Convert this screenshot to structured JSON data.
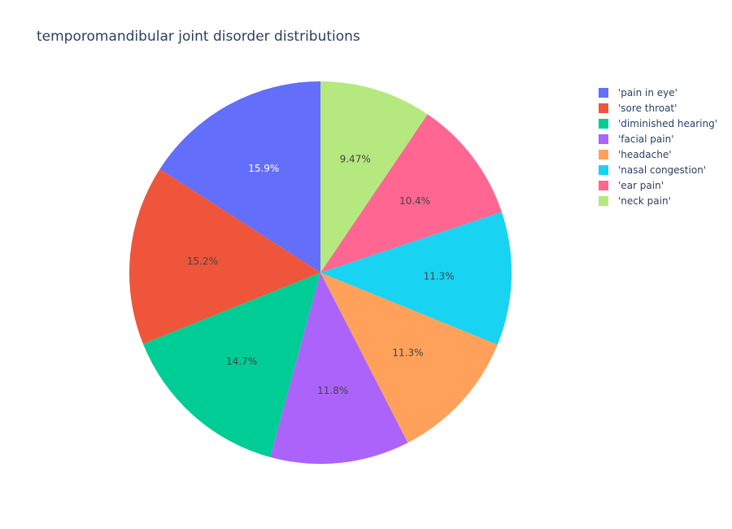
{
  "chart_data": {
    "type": "pie",
    "title": "temporomandibular joint disorder distributions",
    "labels": [
      "'pain in eye'",
      "'sore throat'",
      "'diminished hearing'",
      "'facial pain'",
      "'headache'",
      "'nasal congestion'",
      "'ear pain'",
      "'neck pain'"
    ],
    "values": [
      15.9,
      15.2,
      14.7,
      11.8,
      11.3,
      11.3,
      10.4,
      9.47
    ],
    "display_labels": [
      "15.9%",
      "15.2%",
      "14.7%",
      "11.8%",
      "11.3%",
      "11.3%",
      "10.4%",
      "9.47%"
    ],
    "colors": [
      "#636efa",
      "#EF553B",
      "#00cc96",
      "#ab63fa",
      "#FFA15A",
      "#19d3f3",
      "#FF6692",
      "#B6E880"
    ],
    "label_colors": [
      "#ffffff",
      "#444444",
      "#444444",
      "#444444",
      "#444444",
      "#444444",
      "#444444",
      "#444444"
    ],
    "direction": "counterclockwise",
    "legend_position": "top-right"
  }
}
